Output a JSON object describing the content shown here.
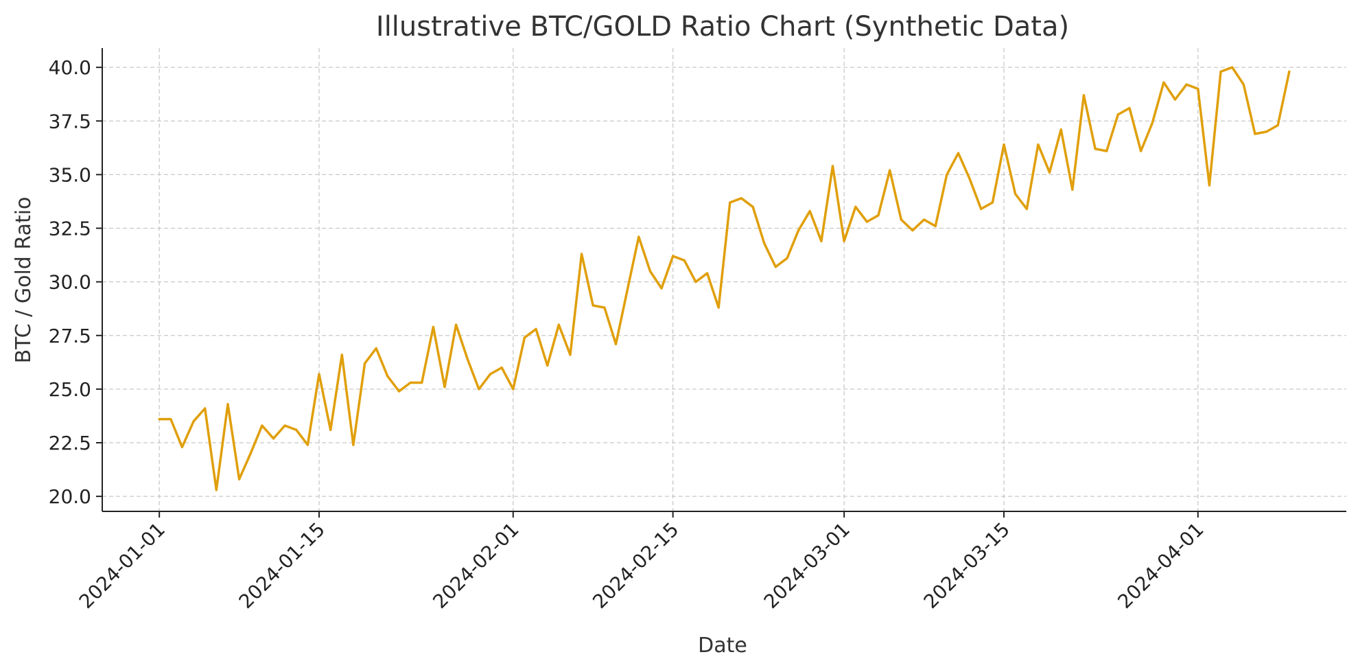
{
  "chart_data": {
    "type": "line",
    "title": "Illustrative BTC/GOLD Ratio Chart (Synthetic Data)",
    "xlabel": "Date",
    "ylabel": "BTC / Gold Ratio",
    "x_start": "2024-01-01",
    "x_frequency": "daily",
    "xlim": [
      "2023-12-27",
      "2024-04-14"
    ],
    "ylim": [
      19.3,
      40.9
    ],
    "x_ticks": [
      "2024-01-01",
      "2024-01-15",
      "2024-02-01",
      "2024-02-15",
      "2024-03-01",
      "2024-03-15",
      "2024-04-01"
    ],
    "y_ticks": [
      20.0,
      22.5,
      25.0,
      27.5,
      30.0,
      32.5,
      35.0,
      37.5,
      40.0
    ],
    "y_tick_labels": [
      "20.0",
      "22.5",
      "25.0",
      "27.5",
      "30.0",
      "32.5",
      "35.0",
      "37.5",
      "40.0"
    ],
    "grid": true,
    "series": [
      {
        "color": "#e09f0b",
        "values": [
          23.6,
          23.6,
          22.3,
          23.5,
          24.1,
          20.3,
          24.3,
          20.8,
          22.0,
          23.3,
          22.7,
          23.3,
          23.1,
          22.4,
          25.7,
          23.1,
          26.6,
          22.4,
          26.2,
          26.9,
          25.6,
          24.9,
          25.3,
          25.3,
          27.9,
          25.1,
          28.0,
          26.4,
          25.0,
          25.7,
          26.0,
          25.0,
          27.4,
          27.8,
          26.1,
          28.0,
          26.6,
          31.3,
          28.9,
          28.8,
          27.1,
          29.6,
          32.1,
          30.5,
          29.7,
          31.2,
          31.0,
          30.0,
          30.4,
          28.8,
          33.7,
          33.9,
          33.5,
          31.8,
          30.7,
          31.1,
          32.4,
          33.3,
          31.9,
          35.4,
          31.9,
          33.5,
          32.8,
          33.1,
          35.2,
          32.9,
          32.4,
          32.9,
          32.6,
          35.0,
          36.0,
          34.8,
          33.4,
          33.7,
          36.4,
          34.1,
          33.4,
          36.4,
          35.1,
          37.1,
          34.3,
          38.7,
          36.2,
          36.1,
          37.8,
          38.1,
          36.1,
          37.4,
          39.3,
          38.5,
          39.2,
          39.0,
          34.5,
          39.8,
          40.0,
          39.2,
          36.9,
          37.0,
          37.3,
          39.8
        ]
      }
    ]
  }
}
